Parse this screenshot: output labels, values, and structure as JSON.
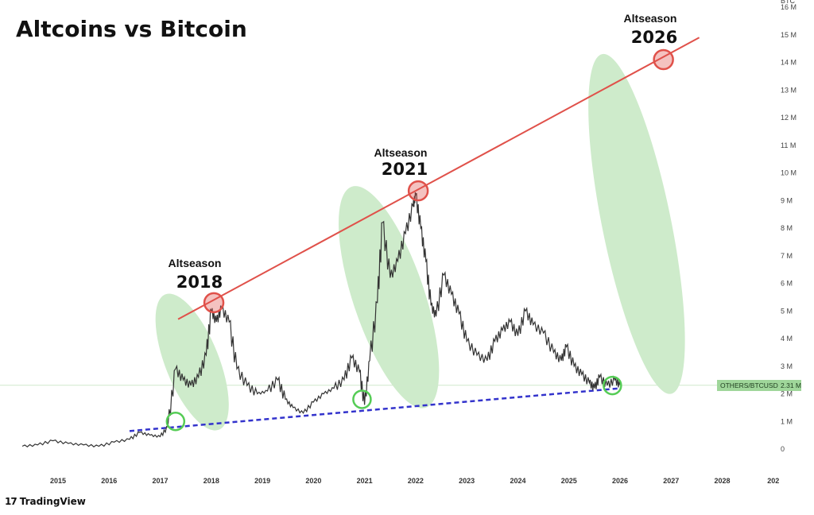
{
  "chart_data": {
    "type": "line",
    "title": "Altcoins vs Bitcoin",
    "symbol": "OTHERS/BTCUSD",
    "current_value_label": "2.31 M",
    "current_value": 2.31,
    "y_unit_label": "BTC",
    "y_ticks": [
      "0",
      "1 M",
      "2 M",
      "3 M",
      "4 M",
      "5 M",
      "6 M",
      "7 M",
      "8 M",
      "9 M",
      "10 M",
      "11 M",
      "12 M",
      "13 M",
      "14 M",
      "15 M",
      "16 M"
    ],
    "ylim": [
      0,
      16
    ],
    "x_ticks": [
      "2015",
      "2016",
      "2017",
      "2018",
      "2019",
      "2020",
      "2021",
      "2022",
      "2023",
      "2024",
      "2025",
      "2026",
      "2027",
      "2028",
      "202"
    ],
    "xlim": [
      2014.2,
      2029.0
    ],
    "series": [
      {
        "x": [
          2014.3,
          2014.6,
          2014.9,
          2015.2,
          2015.5,
          2015.8,
          2016.1,
          2016.4,
          2016.6,
          2016.8,
          2017.0,
          2017.15,
          2017.3,
          2017.45,
          2017.6,
          2017.75,
          2017.9,
          2018.0,
          2018.1,
          2018.2,
          2018.35,
          2018.5,
          2018.7,
          2018.9,
          2019.1,
          2019.3,
          2019.45,
          2019.6,
          2019.8,
          2020.0,
          2020.2,
          2020.4,
          2020.6,
          2020.75,
          2020.9,
          2021.0,
          2021.1,
          2021.25,
          2021.35,
          2021.5,
          2021.65,
          2021.8,
          2021.95,
          2022.0,
          2022.1,
          2022.2,
          2022.3,
          2022.4,
          2022.55,
          2022.7,
          2022.85,
          2023.0,
          2023.2,
          2023.4,
          2023.55,
          2023.7,
          2023.85,
          2024.0,
          2024.15,
          2024.3,
          2024.5,
          2024.7,
          2024.85,
          2024.95,
          2025.1,
          2025.25,
          2025.4,
          2025.5,
          2025.6,
          2025.75,
          2025.9,
          2026.0
        ],
        "values": [
          0.1,
          0.15,
          0.3,
          0.2,
          0.15,
          0.1,
          0.25,
          0.35,
          0.6,
          0.5,
          0.45,
          0.8,
          2.9,
          2.5,
          2.3,
          2.6,
          3.4,
          5.0,
          4.6,
          5.1,
          4.6,
          2.9,
          2.3,
          2.0,
          2.1,
          2.5,
          1.8,
          1.5,
          1.3,
          1.7,
          2.0,
          2.2,
          2.5,
          3.3,
          2.8,
          1.6,
          3.2,
          5.3,
          8.2,
          6.2,
          6.8,
          7.8,
          8.8,
          9.2,
          8.0,
          6.8,
          5.2,
          4.8,
          6.3,
          5.6,
          4.9,
          3.9,
          3.4,
          3.2,
          3.9,
          4.3,
          4.6,
          4.1,
          5.0,
          4.5,
          4.2,
          3.5,
          3.2,
          3.7,
          3.0,
          2.7,
          2.4,
          2.2,
          2.6,
          2.3,
          2.5,
          2.31
        ]
      }
    ],
    "trendlines": [
      {
        "color": "#e0514a",
        "style": "solid",
        "from": [
          2017.35,
          4.7
        ],
        "to": [
          2027.55,
          14.9
        ]
      },
      {
        "color": "#3333cc",
        "style": "dashed",
        "from": [
          2016.4,
          0.65
        ],
        "to": [
          2026.0,
          2.2
        ]
      }
    ],
    "peak_circles": [
      {
        "x": 2018.05,
        "y": 5.3
      },
      {
        "x": 2022.05,
        "y": 9.35
      },
      {
        "x": 2026.85,
        "y": 14.1
      }
    ],
    "bottom_circles": [
      {
        "x": 2017.3,
        "y": 1.0
      },
      {
        "x": 2020.95,
        "y": 1.8
      },
      {
        "x": 2025.85,
        "y": 2.3
      }
    ],
    "highlight_ellipses": [
      {
        "x_from": 2017.1,
        "x_to": 2018.15,
        "y_from": 0.7,
        "y_to": 5.6
      },
      {
        "x_from": 2020.75,
        "x_to": 2022.2,
        "y_from": 1.5,
        "y_to": 9.5
      },
      {
        "x_from": 2025.65,
        "x_to": 2027.0,
        "y_from": 2.0,
        "y_to": 14.3
      }
    ],
    "annotations": [
      {
        "label": "Altseason",
        "year": "2018"
      },
      {
        "label": "Altseason",
        "year": "2021"
      },
      {
        "label": "Altseason",
        "year": "2026"
      }
    ],
    "grid": false,
    "legend": "none"
  },
  "footer": {
    "brand": "TradingView"
  },
  "colors": {
    "price_line": "#333333",
    "ellipse_fill": "#a6dba0",
    "red_circle": "#e0514a",
    "green_circle": "#55cc55",
    "badge_bg": "#9fd69a"
  }
}
